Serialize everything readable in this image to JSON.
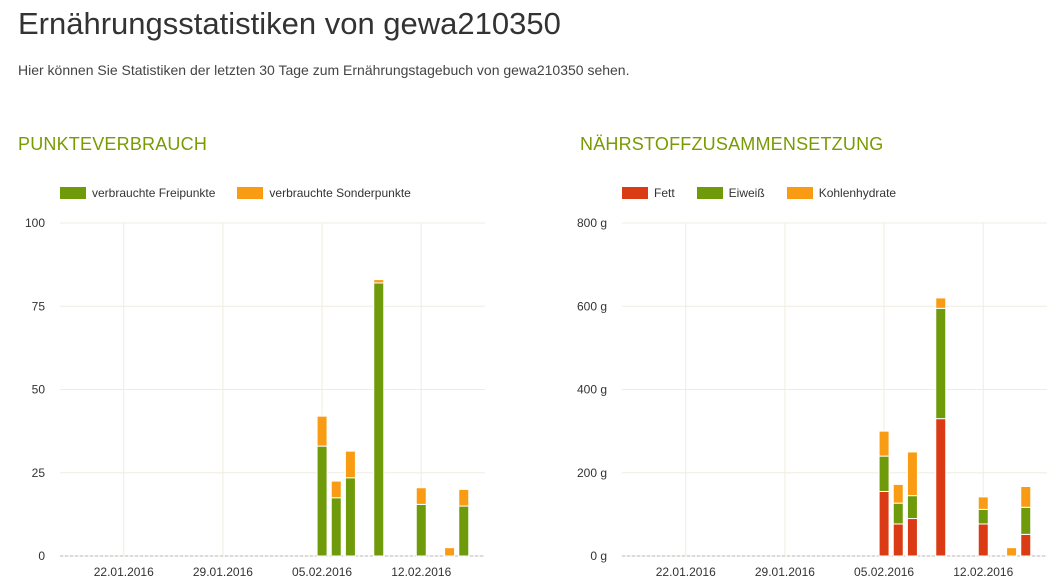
{
  "page": {
    "title": "Ernährungsstatistiken von gewa210350",
    "intro": "Hier können Sie Statistiken der letzten 30 Tage zum Ernährungstagebuch von gewa210350 sehen."
  },
  "colors": {
    "heading": "#7a9a01",
    "freipunkte": "#6f9a09",
    "sonderpunkte": "#f99c13",
    "fett": "#da3b14",
    "eiweiss": "#6f9a09",
    "kohlenhydrate": "#f99c13",
    "grid": "#efede0"
  },
  "chart_data": [
    {
      "title": "PUNKTEVERBRAUCH",
      "type": "bar",
      "stacked": true,
      "x_dates": [
        "18.01.2016",
        "19.01.2016",
        "20.01.2016",
        "21.01.2016",
        "22.01.2016",
        "23.01.2016",
        "24.01.2016",
        "25.01.2016",
        "26.01.2016",
        "27.01.2016",
        "28.01.2016",
        "29.01.2016",
        "30.01.2016",
        "31.01.2016",
        "01.02.2016",
        "02.02.2016",
        "03.02.2016",
        "04.02.2016",
        "05.02.2016",
        "06.02.2016",
        "07.02.2016",
        "08.02.2016",
        "09.02.2016",
        "10.02.2016",
        "11.02.2016",
        "12.02.2016",
        "13.02.2016",
        "14.02.2016",
        "15.02.2016",
        "16.02.2016"
      ],
      "xticks": [
        "22.01.2016",
        "29.01.2016",
        "05.02.2016",
        "12.02.2016"
      ],
      "yticks": [
        "0",
        "25",
        "50",
        "75",
        "100"
      ],
      "ylim": [
        0,
        100
      ],
      "grid": true,
      "legend_position": "top-left",
      "series": [
        {
          "name": "verbrauchte Freipunkte",
          "color": "#6f9a09",
          "values": [
            0,
            0,
            0,
            0,
            0,
            0,
            0,
            0,
            0,
            0,
            0,
            0,
            0,
            0,
            0,
            0,
            0,
            0,
            33,
            17.5,
            23.5,
            0,
            82,
            0,
            0,
            15.5,
            0,
            0,
            15,
            0
          ]
        },
        {
          "name": "verbrauchte Sonderpunkte",
          "color": "#f99c13",
          "values": [
            0,
            0,
            0,
            0,
            0,
            0,
            0,
            0,
            0,
            0,
            0,
            0,
            0,
            0,
            0,
            0,
            0,
            0,
            9,
            5,
            8,
            0,
            1,
            0,
            0,
            5,
            0,
            2.5,
            5,
            0
          ]
        }
      ]
    },
    {
      "title": "NÄHRSTOFFZUSAMMENSETZUNG",
      "type": "bar",
      "stacked": true,
      "x_dates": [
        "18.01.2016",
        "19.01.2016",
        "20.01.2016",
        "21.01.2016",
        "22.01.2016",
        "23.01.2016",
        "24.01.2016",
        "25.01.2016",
        "26.01.2016",
        "27.01.2016",
        "28.01.2016",
        "29.01.2016",
        "30.01.2016",
        "31.01.2016",
        "01.02.2016",
        "02.02.2016",
        "03.02.2016",
        "04.02.2016",
        "05.02.2016",
        "06.02.2016",
        "07.02.2016",
        "08.02.2016",
        "09.02.2016",
        "10.02.2016",
        "11.02.2016",
        "12.02.2016",
        "13.02.2016",
        "14.02.2016",
        "15.02.2016",
        "16.02.2016"
      ],
      "xticks": [
        "22.01.2016",
        "29.01.2016",
        "05.02.2016",
        "12.02.2016"
      ],
      "yticks": [
        "0 g",
        "200 g",
        "400 g",
        "600 g",
        "800 g"
      ],
      "ylim": [
        0,
        800
      ],
      "grid": true,
      "legend_position": "top-left",
      "series": [
        {
          "name": "Fett",
          "color": "#da3b14",
          "values": [
            0,
            0,
            0,
            0,
            0,
            0,
            0,
            0,
            0,
            0,
            0,
            0,
            0,
            0,
            0,
            0,
            0,
            0,
            155,
            77,
            90,
            0,
            330,
            0,
            0,
            77,
            0,
            0,
            52,
            0
          ]
        },
        {
          "name": "Eiweiß",
          "color": "#6f9a09",
          "values": [
            0,
            0,
            0,
            0,
            0,
            0,
            0,
            0,
            0,
            0,
            0,
            0,
            0,
            0,
            0,
            0,
            0,
            0,
            85,
            50,
            55,
            0,
            265,
            0,
            0,
            35,
            0,
            0,
            65,
            0
          ]
        },
        {
          "name": "Kohlenhydrate",
          "color": "#f99c13",
          "values": [
            0,
            0,
            0,
            0,
            0,
            0,
            0,
            0,
            0,
            0,
            0,
            0,
            0,
            0,
            0,
            0,
            0,
            0,
            60,
            45,
            105,
            0,
            25,
            0,
            0,
            30,
            0,
            20,
            50,
            0
          ]
        }
      ]
    }
  ]
}
